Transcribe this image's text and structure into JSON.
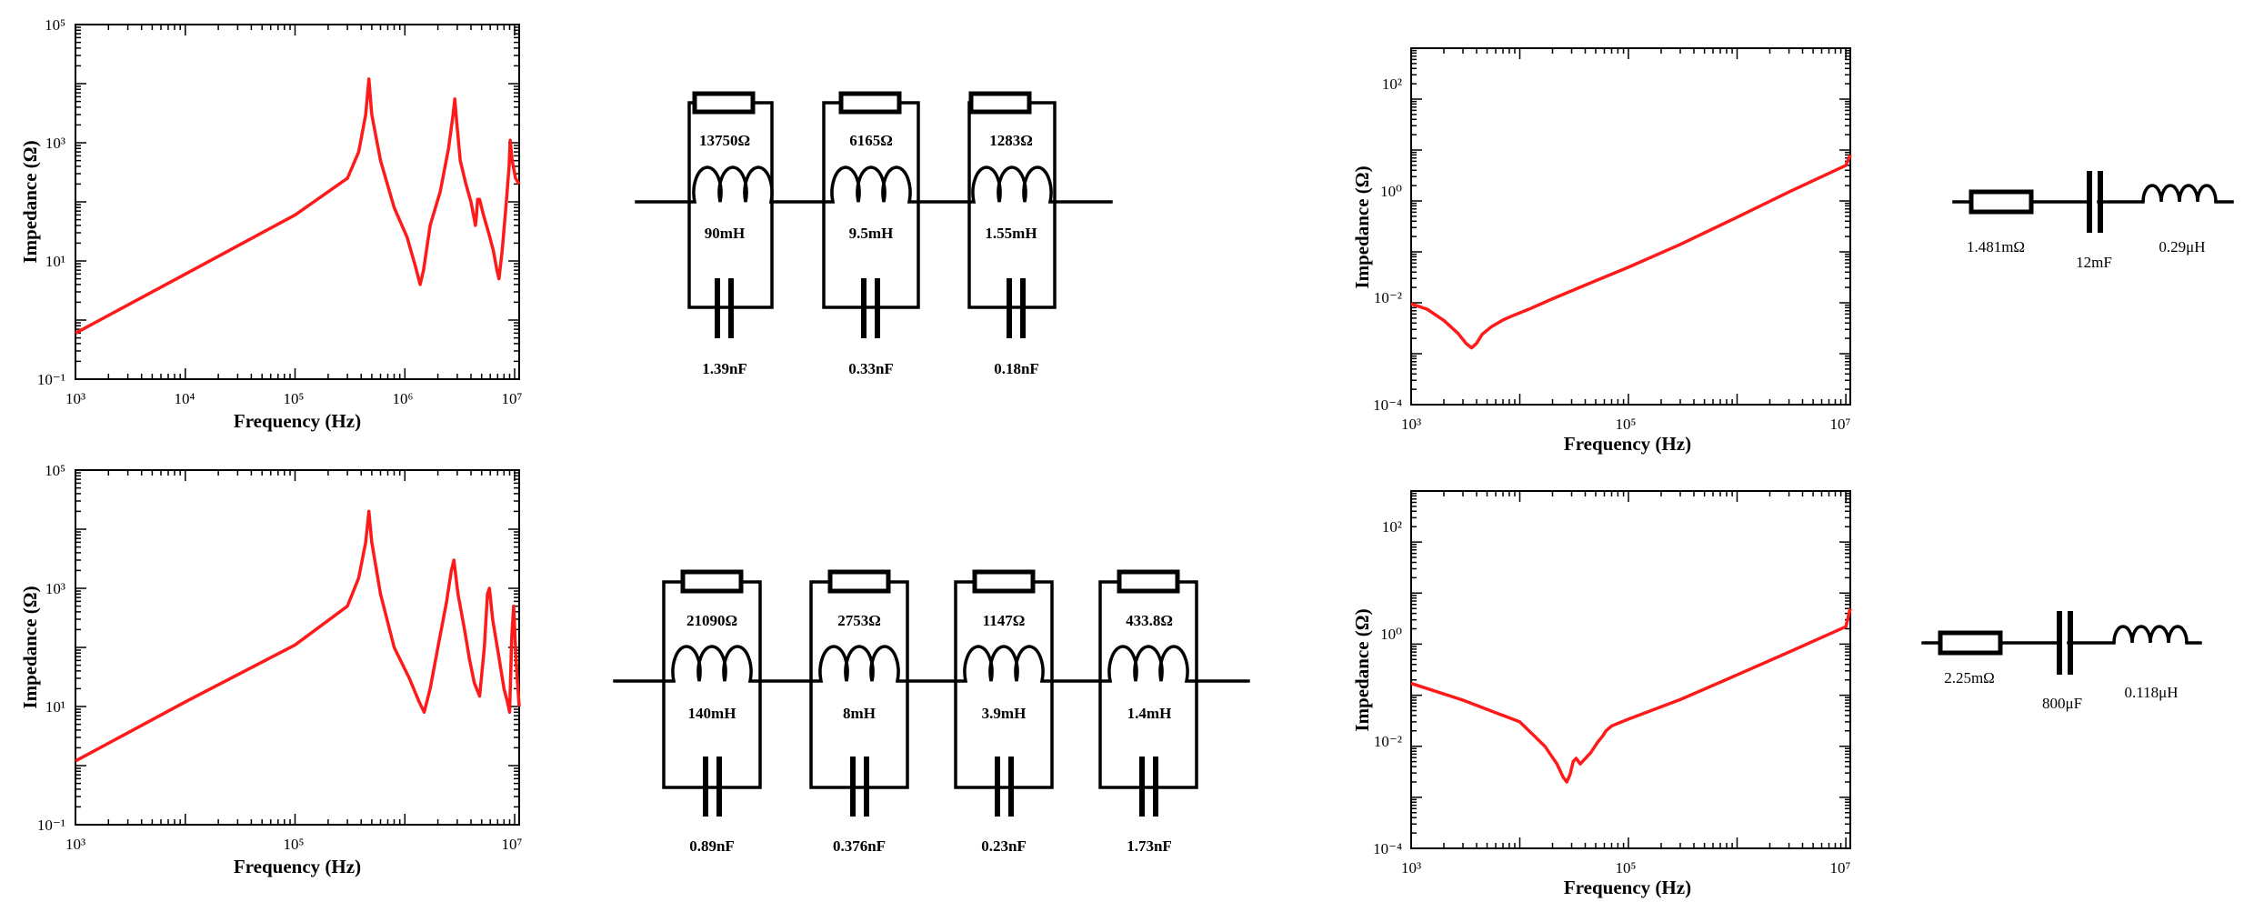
{
  "colors": {
    "curve": "#ff1a1a",
    "axis": "#000000"
  },
  "chart_data": [
    {
      "type": "line",
      "ylabel": "Impedance (Ω)",
      "xlabel": "Frequency (Hz)",
      "xscale": "log",
      "yscale": "log",
      "xlim": [
        1000,
        11000000
      ],
      "ylim": [
        0.1,
        100000
      ],
      "xtick_labels": [
        "10³",
        "10⁴",
        "10⁵",
        "10⁶",
        "10⁷"
      ],
      "ytick_labels": [
        "10⁻¹",
        "10¹",
        "10³",
        "10⁵"
      ],
      "series": [
        {
          "x": [
            1000,
            10000,
            100000,
            300000,
            380000,
            440000,
            470000,
            500000,
            600000,
            800000,
            1050000,
            1250000,
            1380000,
            1480000,
            1700000,
            2100000,
            2500000,
            2750000,
            2850000,
            2950000,
            3200000,
            3600000,
            4000000,
            4300000,
            4400000,
            4500000,
            4600000,
            4800000,
            5200000,
            5800000,
            6400000,
            6900000,
            7200000,
            7700000,
            8400000,
            8900000,
            9100000,
            9500000,
            10200000,
            11000000
          ],
          "y": [
            0.6,
            6,
            60,
            250,
            700,
            3000,
            12000,
            3000,
            500,
            80,
            25,
            8,
            4,
            7,
            40,
            150,
            800,
            3000,
            5500,
            2500,
            500,
            200,
            100,
            50,
            40,
            60,
            110,
            110,
            60,
            30,
            15,
            7,
            5,
            15,
            100,
            400,
            1100,
            500,
            250,
            200
          ]
        }
      ]
    },
    {
      "type": "line",
      "ylabel": "Impedance (Ω)",
      "xlabel": "Frequency (Hz)",
      "xscale": "log",
      "yscale": "log",
      "xlim": [
        1000,
        11000000
      ],
      "ylim": [
        0.1,
        100000
      ],
      "xtick_labels": [
        "10³",
        "10⁵",
        "10⁷"
      ],
      "ytick_labels": [
        "10⁻¹",
        "10¹",
        "10³",
        "10⁵"
      ],
      "series": [
        {
          "x": [
            1000,
            10000,
            100000,
            300000,
            380000,
            440000,
            470000,
            500000,
            600000,
            800000,
            1100000,
            1350000,
            1500000,
            1700000,
            2000000,
            2400000,
            2650000,
            2800000,
            3050000,
            3500000,
            3900000,
            4300000,
            4800000,
            5300000,
            5650000,
            5900000,
            6300000,
            7100000,
            8000000,
            8600000,
            9000000,
            9400000,
            9800000,
            10300000,
            11000000
          ],
          "y": [
            1.2,
            12,
            110,
            500,
            1500,
            6000,
            20000,
            6000,
            800,
            100,
            30,
            12,
            8,
            20,
            100,
            600,
            2000,
            3000,
            800,
            200,
            60,
            25,
            15,
            100,
            800,
            1000,
            300,
            80,
            20,
            12,
            8,
            150,
            500,
            60,
            10
          ]
        }
      ]
    },
    {
      "type": "line",
      "ylabel": "Impedance (Ω)",
      "xlabel": "Frequency (Hz)",
      "xscale": "log",
      "yscale": "log",
      "xlim": [
        1000,
        11000000
      ],
      "ylim": [
        0.0001,
        1000
      ],
      "xtick_labels": [
        "10³",
        "10⁵",
        "10⁷"
      ],
      "ytick_labels": [
        "10⁻⁴",
        "10⁻²",
        "10⁰",
        "10²"
      ],
      "series": [
        {
          "x": [
            1000,
            1400,
            2000,
            2700,
            3200,
            3600,
            4000,
            4500,
            5500,
            7000,
            9000,
            12000,
            20000,
            50000,
            100000,
            300000,
            1000000,
            3000000,
            10000000,
            11000000
          ],
          "y": [
            0.0095,
            0.0075,
            0.0045,
            0.0025,
            0.0016,
            0.0013,
            0.0016,
            0.0024,
            0.0034,
            0.0046,
            0.0058,
            0.0074,
            0.012,
            0.027,
            0.05,
            0.14,
            0.48,
            1.5,
            5,
            8
          ]
        }
      ]
    },
    {
      "type": "line",
      "ylabel": "Impedance (Ω)",
      "xlabel": "Frequency (Hz)",
      "xscale": "log",
      "yscale": "log",
      "xlim": [
        1000,
        11000000
      ],
      "ylim": [
        0.0001,
        1000
      ],
      "xtick_labels": [
        "10³",
        "10⁵",
        "10⁷"
      ],
      "ytick_labels": [
        "10⁻⁴",
        "10⁻²",
        "10⁰",
        "10²"
      ],
      "series": [
        {
          "x": [
            1000,
            3000,
            10000,
            17000,
            22000,
            25000,
            27000,
            29000,
            31000,
            33000,
            36000,
            45000,
            52000,
            58000,
            62000,
            70000,
            100000,
            300000,
            1000000,
            3000000,
            10000000,
            11000000
          ],
          "y": [
            0.17,
            0.08,
            0.03,
            0.01,
            0.0045,
            0.0025,
            0.002,
            0.0028,
            0.005,
            0.0058,
            0.0045,
            0.0075,
            0.012,
            0.016,
            0.02,
            0.025,
            0.034,
            0.082,
            0.25,
            0.7,
            2.2,
            5
          ]
        }
      ]
    }
  ],
  "circuits": [
    {
      "type": "parallel-rlc-chain",
      "branches": [
        {
          "r": "13750Ω",
          "l": "90mH",
          "c": "1.39nF"
        },
        {
          "r": "6165Ω",
          "l": "9.5mH",
          "c": "0.33nF"
        },
        {
          "r": "1283Ω",
          "l": "1.55mH",
          "c": "0.18nF"
        }
      ]
    },
    {
      "type": "parallel-rlc-chain",
      "branches": [
        {
          "r": "21090Ω",
          "l": "140mH",
          "c": "0.89nF"
        },
        {
          "r": "2753Ω",
          "l": "8mH",
          "c": "0.376nF"
        },
        {
          "r": "1147Ω",
          "l": "3.9mH",
          "c": "0.23nF"
        },
        {
          "r": "433.8Ω",
          "l": "1.4mH",
          "c": "1.73nF"
        }
      ]
    },
    {
      "type": "series-rlc",
      "r": "1.481mΩ",
      "c": "12mF",
      "l": "0.29μH"
    },
    {
      "type": "series-rlc",
      "r": "2.25mΩ",
      "c": "800μF",
      "l": "0.118μH"
    }
  ]
}
